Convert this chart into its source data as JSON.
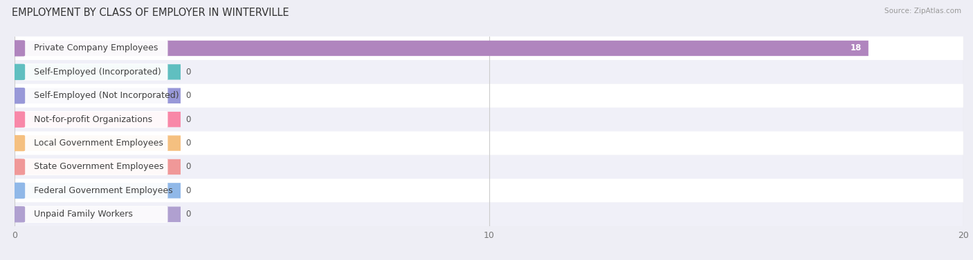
{
  "title": "EMPLOYMENT BY CLASS OF EMPLOYER IN WINTERVILLE",
  "source": "Source: ZipAtlas.com",
  "categories": [
    "Private Company Employees",
    "Self-Employed (Incorporated)",
    "Self-Employed (Not Incorporated)",
    "Not-for-profit Organizations",
    "Local Government Employees",
    "State Government Employees",
    "Federal Government Employees",
    "Unpaid Family Workers"
  ],
  "values": [
    18,
    0,
    0,
    0,
    0,
    0,
    0,
    0
  ],
  "bar_colors": [
    "#b085be",
    "#60bfc0",
    "#9898d8",
    "#f888a8",
    "#f5c080",
    "#f09898",
    "#90b8e8",
    "#b0a0d0"
  ],
  "xlim": [
    0,
    20
  ],
  "xticks": [
    0,
    10,
    20
  ],
  "bg_color": "#eeeef5",
  "row_colors": [
    "#ffffff",
    "#f0f0f8"
  ],
  "title_fontsize": 10.5,
  "label_fontsize": 9,
  "value_fontsize": 8.5,
  "bar_height": 0.65
}
